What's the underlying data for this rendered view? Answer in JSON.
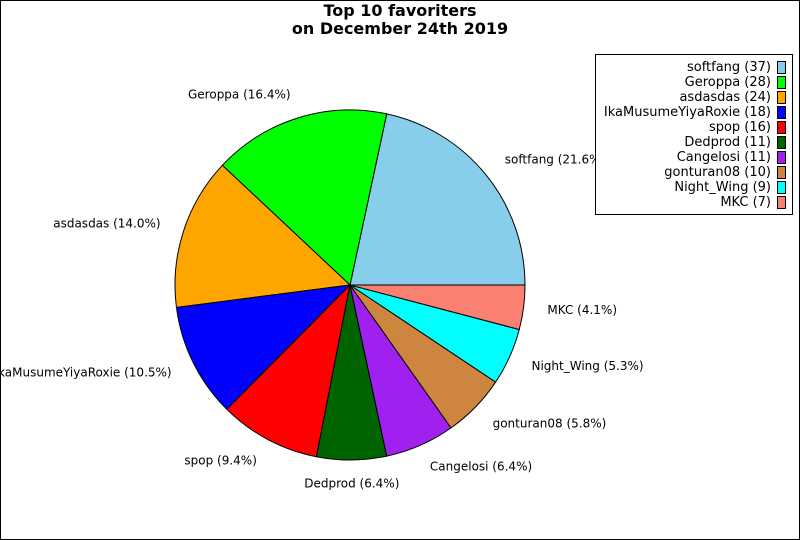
{
  "chart_data": {
    "type": "pie",
    "title": "Top 10 favoriters\non December 24th 2019",
    "legend_position": "top-right",
    "slices": [
      {
        "label": "softfang",
        "value": 37,
        "percent": "21.6%",
        "color": "#87ceeb"
      },
      {
        "label": "Geroppa",
        "value": 28,
        "percent": "16.4%",
        "color": "#00ff00"
      },
      {
        "label": "asdasdas",
        "value": 24,
        "percent": "14.0%",
        "color": "#ffa500"
      },
      {
        "label": "IkaMusumeYiyaRoxie",
        "value": 18,
        "percent": "10.5%",
        "color": "#0000ff"
      },
      {
        "label": "spop",
        "value": 16,
        "percent": "9.4%",
        "color": "#ff0000"
      },
      {
        "label": "Dedprod",
        "value": 11,
        "percent": "6.4%",
        "color": "#006400"
      },
      {
        "label": "Cangelosi",
        "value": 11,
        "percent": "6.4%",
        "color": "#a020f0"
      },
      {
        "label": "gonturan08",
        "value": 10,
        "percent": "5.8%",
        "color": "#cd853f"
      },
      {
        "label": "Night_Wing",
        "value": 9,
        "percent": "5.3%",
        "color": "#00ffff"
      },
      {
        "label": "MKC",
        "value": 7,
        "percent": "4.1%",
        "color": "#fa8072"
      }
    ]
  }
}
